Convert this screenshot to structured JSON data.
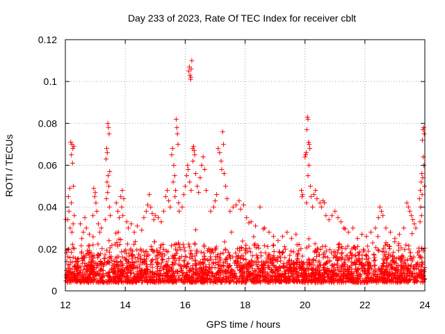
{
  "chart_data": {
    "type": "scatter",
    "title": "Day 233 of 2023, Rate Of TEC Index for receiver cblt",
    "xlabel": "GPS time / hours",
    "ylabel": "ROTI / TECUs",
    "xlim": [
      12,
      24
    ],
    "ylim": [
      0,
      0.12
    ],
    "x_ticks": [
      12,
      14,
      16,
      18,
      20,
      22,
      24
    ],
    "x_tick_labels": [
      "12",
      "14",
      "16",
      "18",
      "20",
      "22",
      "24"
    ],
    "y_ticks": [
      0,
      0.02,
      0.04,
      0.06,
      0.08,
      0.1,
      0.12
    ],
    "y_tick_labels": [
      "0",
      "0.02",
      "0.04",
      "0.06",
      "0.08",
      "0.1",
      "0.12"
    ],
    "grid": true,
    "marker": "+",
    "series": [
      {
        "name": "ROTI",
        "color": "#ff0000",
        "background_band": {
          "x_range": [
            12.0,
            24.0
          ],
          "y_low": 0.004,
          "y_high": 0.022,
          "description": "dense continuous cloud of points"
        },
        "points": [
          [
            12.18,
            0.071
          ],
          [
            12.22,
            0.07
          ],
          [
            12.25,
            0.068
          ],
          [
            12.28,
            0.069
          ],
          [
            12.2,
            0.065
          ],
          [
            12.24,
            0.061
          ],
          [
            12.15,
            0.049
          ],
          [
            12.27,
            0.05
          ],
          [
            12.1,
            0.045
          ],
          [
            12.2,
            0.042
          ],
          [
            12.12,
            0.038
          ],
          [
            12.3,
            0.036
          ],
          [
            12.08,
            0.034
          ],
          [
            12.26,
            0.032
          ],
          [
            12.16,
            0.03
          ],
          [
            12.22,
            0.028
          ],
          [
            12.5,
            0.032
          ],
          [
            12.6,
            0.028
          ],
          [
            12.7,
            0.03
          ],
          [
            12.55,
            0.025
          ],
          [
            12.8,
            0.027
          ],
          [
            12.65,
            0.035
          ],
          [
            12.95,
            0.049
          ],
          [
            13.0,
            0.047
          ],
          [
            12.98,
            0.045
          ],
          [
            13.02,
            0.042
          ],
          [
            13.05,
            0.038
          ],
          [
            12.92,
            0.036
          ],
          [
            13.1,
            0.032
          ],
          [
            13.15,
            0.028
          ],
          [
            13.2,
            0.03
          ],
          [
            13.38,
            0.068
          ],
          [
            13.4,
            0.066
          ],
          [
            13.42,
            0.08
          ],
          [
            13.44,
            0.078
          ],
          [
            13.46,
            0.075
          ],
          [
            13.36,
            0.063
          ],
          [
            13.48,
            0.057
          ],
          [
            13.43,
            0.055
          ],
          [
            13.39,
            0.052
          ],
          [
            13.45,
            0.05
          ],
          [
            13.41,
            0.047
          ],
          [
            13.37,
            0.044
          ],
          [
            13.47,
            0.04
          ],
          [
            13.5,
            0.036
          ],
          [
            13.33,
            0.034
          ],
          [
            13.7,
            0.042
          ],
          [
            13.75,
            0.038
          ],
          [
            13.8,
            0.035
          ],
          [
            13.85,
            0.045
          ],
          [
            13.9,
            0.048
          ],
          [
            13.95,
            0.044
          ],
          [
            13.88,
            0.04
          ],
          [
            13.92,
            0.036
          ],
          [
            14.05,
            0.033
          ],
          [
            14.1,
            0.03
          ],
          [
            14.2,
            0.032
          ],
          [
            14.3,
            0.028
          ],
          [
            14.4,
            0.031
          ],
          [
            14.55,
            0.029
          ],
          [
            14.62,
            0.035
          ],
          [
            14.7,
            0.038
          ],
          [
            14.75,
            0.041
          ],
          [
            14.8,
            0.046
          ],
          [
            14.85,
            0.04
          ],
          [
            14.9,
            0.037
          ],
          [
            14.95,
            0.034
          ],
          [
            15.0,
            0.036
          ],
          [
            15.1,
            0.035
          ],
          [
            15.2,
            0.033
          ],
          [
            15.28,
            0.038
          ],
          [
            15.35,
            0.045
          ],
          [
            15.4,
            0.048
          ],
          [
            15.45,
            0.043
          ],
          [
            15.5,
            0.04
          ],
          [
            15.55,
            0.065
          ],
          [
            15.58,
            0.068
          ],
          [
            15.62,
            0.06
          ],
          [
            15.65,
            0.055
          ],
          [
            15.6,
            0.052
          ],
          [
            15.68,
            0.048
          ],
          [
            15.7,
            0.082
          ],
          [
            15.72,
            0.078
          ],
          [
            15.74,
            0.075
          ],
          [
            15.76,
            0.07
          ],
          [
            15.66,
            0.045
          ],
          [
            15.78,
            0.042
          ],
          [
            15.8,
            0.038
          ],
          [
            15.9,
            0.04
          ],
          [
            15.95,
            0.046
          ],
          [
            16.0,
            0.05
          ],
          [
            16.05,
            0.055
          ],
          [
            16.08,
            0.06
          ],
          [
            16.12,
            0.105
          ],
          [
            16.14,
            0.107
          ],
          [
            16.16,
            0.103
          ],
          [
            16.18,
            0.101
          ],
          [
            16.2,
            0.106
          ],
          [
            16.22,
            0.11
          ],
          [
            16.19,
            0.102
          ],
          [
            16.1,
            0.058
          ],
          [
            16.15,
            0.052
          ],
          [
            16.2,
            0.048
          ],
          [
            16.25,
            0.068
          ],
          [
            16.28,
            0.069
          ],
          [
            16.3,
            0.067
          ],
          [
            16.32,
            0.065
          ],
          [
            16.26,
            0.062
          ],
          [
            16.35,
            0.056
          ],
          [
            16.4,
            0.05
          ],
          [
            16.45,
            0.047
          ],
          [
            16.5,
            0.054
          ],
          [
            16.55,
            0.06
          ],
          [
            16.6,
            0.064
          ],
          [
            16.65,
            0.058
          ],
          [
            16.7,
            0.048
          ],
          [
            16.85,
            0.038
          ],
          [
            16.95,
            0.04
          ],
          [
            17.0,
            0.043
          ],
          [
            17.05,
            0.046
          ],
          [
            17.1,
            0.068
          ],
          [
            17.15,
            0.066
          ],
          [
            17.2,
            0.062
          ],
          [
            17.22,
            0.058
          ],
          [
            17.25,
            0.076
          ],
          [
            17.28,
            0.07
          ],
          [
            17.3,
            0.056
          ],
          [
            17.35,
            0.05
          ],
          [
            17.4,
            0.044
          ],
          [
            17.5,
            0.038
          ],
          [
            17.6,
            0.04
          ],
          [
            17.7,
            0.041
          ],
          [
            17.8,
            0.043
          ],
          [
            17.85,
            0.039
          ],
          [
            17.95,
            0.041
          ],
          [
            18.05,
            0.035
          ],
          [
            18.2,
            0.033
          ],
          [
            18.35,
            0.031
          ],
          [
            18.5,
            0.04
          ],
          [
            18.65,
            0.03
          ],
          [
            18.8,
            0.028
          ],
          [
            18.95,
            0.026
          ],
          [
            19.1,
            0.024
          ],
          [
            19.25,
            0.026
          ],
          [
            19.4,
            0.028
          ],
          [
            19.55,
            0.025
          ],
          [
            19.7,
            0.027
          ],
          [
            19.88,
            0.048
          ],
          [
            19.9,
            0.045
          ],
          [
            19.92,
            0.046
          ],
          [
            20.0,
            0.064
          ],
          [
            20.02,
            0.065
          ],
          [
            20.04,
            0.066
          ],
          [
            20.06,
            0.077
          ],
          [
            20.08,
            0.083
          ],
          [
            20.1,
            0.082
          ],
          [
            20.12,
            0.071
          ],
          [
            20.14,
            0.07
          ],
          [
            20.16,
            0.068
          ],
          [
            20.13,
            0.06
          ],
          [
            20.1,
            0.055
          ],
          [
            20.18,
            0.05
          ],
          [
            20.2,
            0.045
          ],
          [
            20.05,
            0.042
          ],
          [
            20.25,
            0.04
          ],
          [
            20.3,
            0.046
          ],
          [
            20.35,
            0.048
          ],
          [
            20.4,
            0.044
          ],
          [
            20.5,
            0.042
          ],
          [
            20.55,
            0.04
          ],
          [
            20.6,
            0.043
          ],
          [
            20.65,
            0.042
          ],
          [
            20.7,
            0.036
          ],
          [
            20.8,
            0.034
          ],
          [
            20.9,
            0.036
          ],
          [
            21.0,
            0.038
          ],
          [
            21.1,
            0.035
          ],
          [
            21.2,
            0.033
          ],
          [
            21.3,
            0.03
          ],
          [
            21.45,
            0.028
          ],
          [
            21.6,
            0.03
          ],
          [
            21.75,
            0.025
          ],
          [
            21.9,
            0.027
          ],
          [
            22.05,
            0.026
          ],
          [
            22.2,
            0.028
          ],
          [
            22.35,
            0.03
          ],
          [
            22.45,
            0.035
          ],
          [
            22.5,
            0.04
          ],
          [
            22.55,
            0.038
          ],
          [
            22.6,
            0.036
          ],
          [
            22.7,
            0.03
          ],
          [
            22.85,
            0.028
          ],
          [
            23.0,
            0.025
          ],
          [
            23.15,
            0.027
          ],
          [
            23.3,
            0.03
          ],
          [
            23.4,
            0.042
          ],
          [
            23.45,
            0.04
          ],
          [
            23.5,
            0.038
          ],
          [
            23.55,
            0.036
          ],
          [
            23.6,
            0.034
          ],
          [
            23.65,
            0.032
          ],
          [
            23.7,
            0.03
          ],
          [
            23.82,
            0.044
          ],
          [
            23.85,
            0.048
          ],
          [
            23.88,
            0.052
          ],
          [
            23.9,
            0.056
          ],
          [
            23.92,
            0.072
          ],
          [
            23.94,
            0.077
          ],
          [
            23.96,
            0.078
          ],
          [
            23.98,
            0.075
          ],
          [
            23.95,
            0.064
          ],
          [
            23.97,
            0.06
          ],
          [
            23.93,
            0.054
          ],
          [
            23.99,
            0.05
          ],
          [
            23.91,
            0.046
          ],
          [
            23.86,
            0.04
          ],
          [
            23.89,
            0.036
          ],
          [
            23.84,
            0.033
          ]
        ]
      }
    ]
  }
}
